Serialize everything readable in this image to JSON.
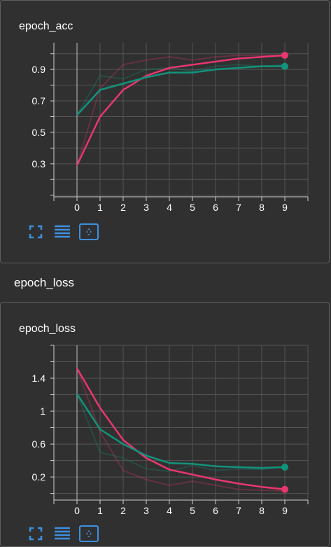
{
  "colors": {
    "background": "#303030",
    "grid": "#555555",
    "axis": "#cfcfcf",
    "series_pink": "#e8376f",
    "series_teal": "#12937b",
    "button_blue": "#3d8fe0"
  },
  "section": {
    "title": "epoch_loss"
  },
  "toolbar_icons": [
    "fullscreen-icon",
    "data-table-icon",
    "fit-domain-icon"
  ],
  "chart_data": [
    {
      "type": "line",
      "title": "epoch_acc",
      "x": [
        0,
        1,
        2,
        3,
        4,
        5,
        6,
        7,
        8,
        9
      ],
      "xlim": [
        -1,
        10
      ],
      "ylim": [
        0.09,
        1.07
      ],
      "x_ticks": [
        "0",
        "1",
        "2",
        "3",
        "4",
        "5",
        "6",
        "7",
        "8",
        "9"
      ],
      "y_ticks": [
        0.3,
        0.5,
        0.7,
        0.9
      ],
      "y_tick_labels": [
        "0.3",
        "0.5",
        "0.7",
        "0.9"
      ],
      "grid": true,
      "series": [
        {
          "color": "#e8376f",
          "smoothed": [
            0.29,
            0.6,
            0.77,
            0.86,
            0.91,
            0.93,
            0.95,
            0.97,
            0.98,
            0.99
          ],
          "raw": [
            0.29,
            0.78,
            0.93,
            0.96,
            0.98,
            0.96,
            0.98,
            0.99,
            0.99,
            0.99
          ]
        },
        {
          "color": "#12937b",
          "smoothed": [
            0.61,
            0.77,
            0.81,
            0.85,
            0.88,
            0.88,
            0.9,
            0.91,
            0.92,
            0.92
          ],
          "raw": [
            0.61,
            0.86,
            0.84,
            0.9,
            0.91,
            0.89,
            0.92,
            0.93,
            0.92,
            0.93
          ]
        }
      ]
    },
    {
      "type": "line",
      "title": "epoch_loss",
      "x": [
        0,
        1,
        2,
        3,
        4,
        5,
        6,
        7,
        8,
        9
      ],
      "xlim": [
        -1,
        10
      ],
      "ylim": [
        -0.08,
        1.8
      ],
      "x_ticks": [
        "0",
        "1",
        "2",
        "3",
        "4",
        "5",
        "6",
        "7",
        "8",
        "9"
      ],
      "y_ticks": [
        0.2,
        0.6,
        1.0,
        1.4
      ],
      "y_tick_labels": [
        "0.2",
        "0.6",
        "1",
        "1.4"
      ],
      "grid": true,
      "series": [
        {
          "color": "#e8376f",
          "smoothed": [
            1.52,
            1.04,
            0.65,
            0.43,
            0.29,
            0.23,
            0.17,
            0.12,
            0.08,
            0.05
          ],
          "raw": [
            1.52,
            0.75,
            0.28,
            0.17,
            0.1,
            0.15,
            0.1,
            0.05,
            0.04,
            0.03
          ]
        },
        {
          "color": "#12937b",
          "smoothed": [
            1.21,
            0.78,
            0.6,
            0.46,
            0.37,
            0.36,
            0.33,
            0.32,
            0.31,
            0.32
          ],
          "raw": [
            1.21,
            0.5,
            0.43,
            0.3,
            0.27,
            0.34,
            0.28,
            0.3,
            0.29,
            0.33
          ]
        }
      ]
    }
  ]
}
